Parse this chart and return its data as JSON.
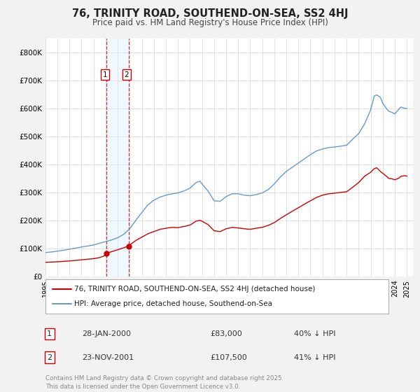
{
  "title": "76, TRINITY ROAD, SOUTHEND-ON-SEA, SS2 4HJ",
  "subtitle": "Price paid vs. HM Land Registry's House Price Index (HPI)",
  "ylim": [
    0,
    850000
  ],
  "yticks": [
    0,
    100000,
    200000,
    300000,
    400000,
    500000,
    600000,
    700000,
    800000
  ],
  "legend_line1": "76, TRINITY ROAD, SOUTHEND-ON-SEA, SS2 4HJ (detached house)",
  "legend_line2": "HPI: Average price, detached house, Southend-on-Sea",
  "line1_color": "#cc0000",
  "line2_color": "#6699cc",
  "purchase1_label": "28-JAN-2000",
  "purchase1_price": 83000,
  "purchase1_hpi_pct": "40% ↓ HPI",
  "purchase2_label": "23-NOV-2001",
  "purchase2_price": 107500,
  "purchase2_hpi_pct": "41% ↓ HPI",
  "footer": "Contains HM Land Registry data © Crown copyright and database right 2025.\nThis data is licensed under the Open Government Licence v3.0.",
  "bg_color": "#f2f2f2",
  "plot_bg_color": "#ffffff",
  "hpi_anchors": {
    "1995.0": 85000,
    "1995.5": 87000,
    "1996.0": 90000,
    "1996.5": 93000,
    "1997.0": 97000,
    "1997.5": 101000,
    "1998.0": 105000,
    "1998.5": 108000,
    "1999.0": 112000,
    "1999.5": 118000,
    "2000.0": 124000,
    "2000.5": 130000,
    "2001.0": 138000,
    "2001.5": 150000,
    "2002.0": 170000,
    "2002.5": 200000,
    "2003.0": 228000,
    "2003.5": 255000,
    "2004.0": 272000,
    "2004.5": 283000,
    "2005.0": 290000,
    "2005.5": 295000,
    "2006.0": 298000,
    "2006.5": 305000,
    "2007.0": 315000,
    "2007.5": 335000,
    "2007.83": 340000,
    "2008.0": 330000,
    "2008.5": 305000,
    "2009.0": 270000,
    "2009.5": 268000,
    "2010.0": 285000,
    "2010.5": 295000,
    "2011.0": 295000,
    "2011.5": 290000,
    "2012.0": 288000,
    "2012.5": 292000,
    "2013.0": 298000,
    "2013.5": 310000,
    "2014.0": 330000,
    "2014.5": 355000,
    "2015.0": 375000,
    "2015.5": 390000,
    "2016.0": 405000,
    "2016.5": 420000,
    "2017.0": 435000,
    "2017.5": 448000,
    "2018.0": 455000,
    "2018.5": 460000,
    "2019.0": 462000,
    "2019.5": 465000,
    "2020.0": 468000,
    "2020.5": 490000,
    "2021.0": 510000,
    "2021.5": 545000,
    "2022.0": 595000,
    "2022.3": 645000,
    "2022.5": 648000,
    "2022.8": 640000,
    "2023.0": 618000,
    "2023.3": 600000,
    "2023.5": 590000,
    "2023.8": 585000,
    "2024.0": 580000,
    "2024.3": 595000,
    "2024.5": 605000,
    "2024.8": 600000,
    "2025.0": 600000
  },
  "prop_anchors": {
    "1995.0": 50000,
    "1995.5": 51000,
    "1996.0": 52000,
    "1996.5": 53500,
    "1997.0": 55000,
    "1997.5": 57000,
    "1998.0": 59000,
    "1998.5": 61000,
    "1999.0": 63000,
    "1999.5": 67000,
    "2000.0": 75000,
    "2000.08": 83000,
    "2000.5": 88000,
    "2001.0": 95000,
    "2001.5": 102000,
    "2001.9": 107500,
    "2002.0": 112000,
    "2002.5": 128000,
    "2003.0": 140000,
    "2003.5": 152000,
    "2004.0": 160000,
    "2004.5": 168000,
    "2005.0": 172000,
    "2005.5": 175000,
    "2006.0": 174000,
    "2006.5": 178000,
    "2007.0": 183000,
    "2007.5": 197000,
    "2007.83": 200000,
    "2008.0": 197000,
    "2008.5": 185000,
    "2009.0": 163000,
    "2009.5": 160000,
    "2010.0": 170000,
    "2010.5": 175000,
    "2011.0": 173000,
    "2011.5": 170000,
    "2012.0": 168000,
    "2012.5": 172000,
    "2013.0": 175000,
    "2013.5": 182000,
    "2014.0": 192000,
    "2014.5": 207000,
    "2015.0": 220000,
    "2015.5": 233000,
    "2016.0": 245000,
    "2016.5": 258000,
    "2017.0": 270000,
    "2017.5": 282000,
    "2018.0": 290000,
    "2018.5": 295000,
    "2019.0": 297000,
    "2019.5": 300000,
    "2020.0": 302000,
    "2020.5": 318000,
    "2021.0": 335000,
    "2021.5": 358000,
    "2022.0": 372000,
    "2022.3": 385000,
    "2022.5": 388000,
    "2022.8": 375000,
    "2023.0": 368000,
    "2023.3": 358000,
    "2023.5": 350000,
    "2023.8": 348000,
    "2024.0": 345000,
    "2024.3": 350000,
    "2024.5": 357000,
    "2024.8": 360000,
    "2025.0": 358000
  },
  "p1_yf": 2000.08,
  "p2_yf": 2001.9,
  "xlim_start": 1995.0,
  "xlim_end": 2025.5
}
